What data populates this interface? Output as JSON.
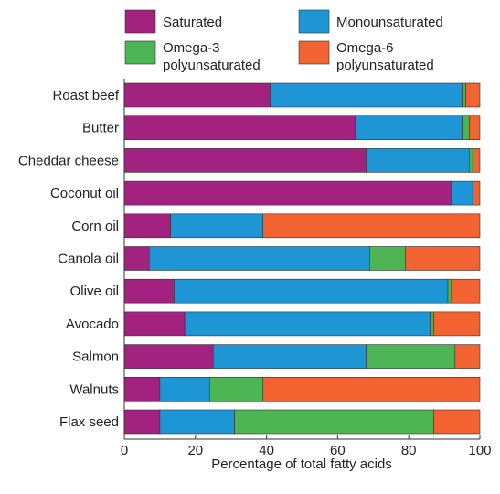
{
  "chart_data": {
    "type": "bar",
    "orientation": "horizontal",
    "stacked": true,
    "title": "",
    "xlabel": "Percentage of total fatty acids",
    "ylabel": "",
    "xlim": [
      0,
      100
    ],
    "xticks": [
      0,
      20,
      40,
      60,
      80,
      100
    ],
    "grid": false,
    "legend_position": "top",
    "categories": [
      "Roast beef",
      "Butter",
      "Cheddar cheese",
      "Coconut oil",
      "Corn oil",
      "Canola oil",
      "Olive oil",
      "Avocado",
      "Salmon",
      "Walnuts",
      "Flax seed"
    ],
    "series": [
      {
        "name": "Saturated",
        "color": "#a3217f",
        "values": [
          41,
          65,
          68,
          92,
          13,
          7,
          14,
          17,
          25,
          10,
          10
        ]
      },
      {
        "name": "Monounsaturated",
        "color": "#1e96d6",
        "values": [
          54,
          30,
          29,
          6,
          26,
          62,
          77,
          69,
          43,
          14,
          21
        ]
      },
      {
        "name": "Omega-3 polyunsaturated",
        "legend_lines": [
          "Omega-3",
          "polyunsaturated"
        ],
        "color": "#4db553",
        "values": [
          1,
          2,
          1,
          0,
          0,
          10,
          1,
          1,
          25,
          15,
          56
        ]
      },
      {
        "name": "Omega-6 polyunsaturated",
        "legend_lines": [
          "Omega-6",
          "polyunsaturated"
        ],
        "color": "#f26331",
        "values": [
          4,
          3,
          2,
          2,
          61,
          21,
          8,
          13,
          7,
          61,
          13
        ]
      }
    ]
  }
}
